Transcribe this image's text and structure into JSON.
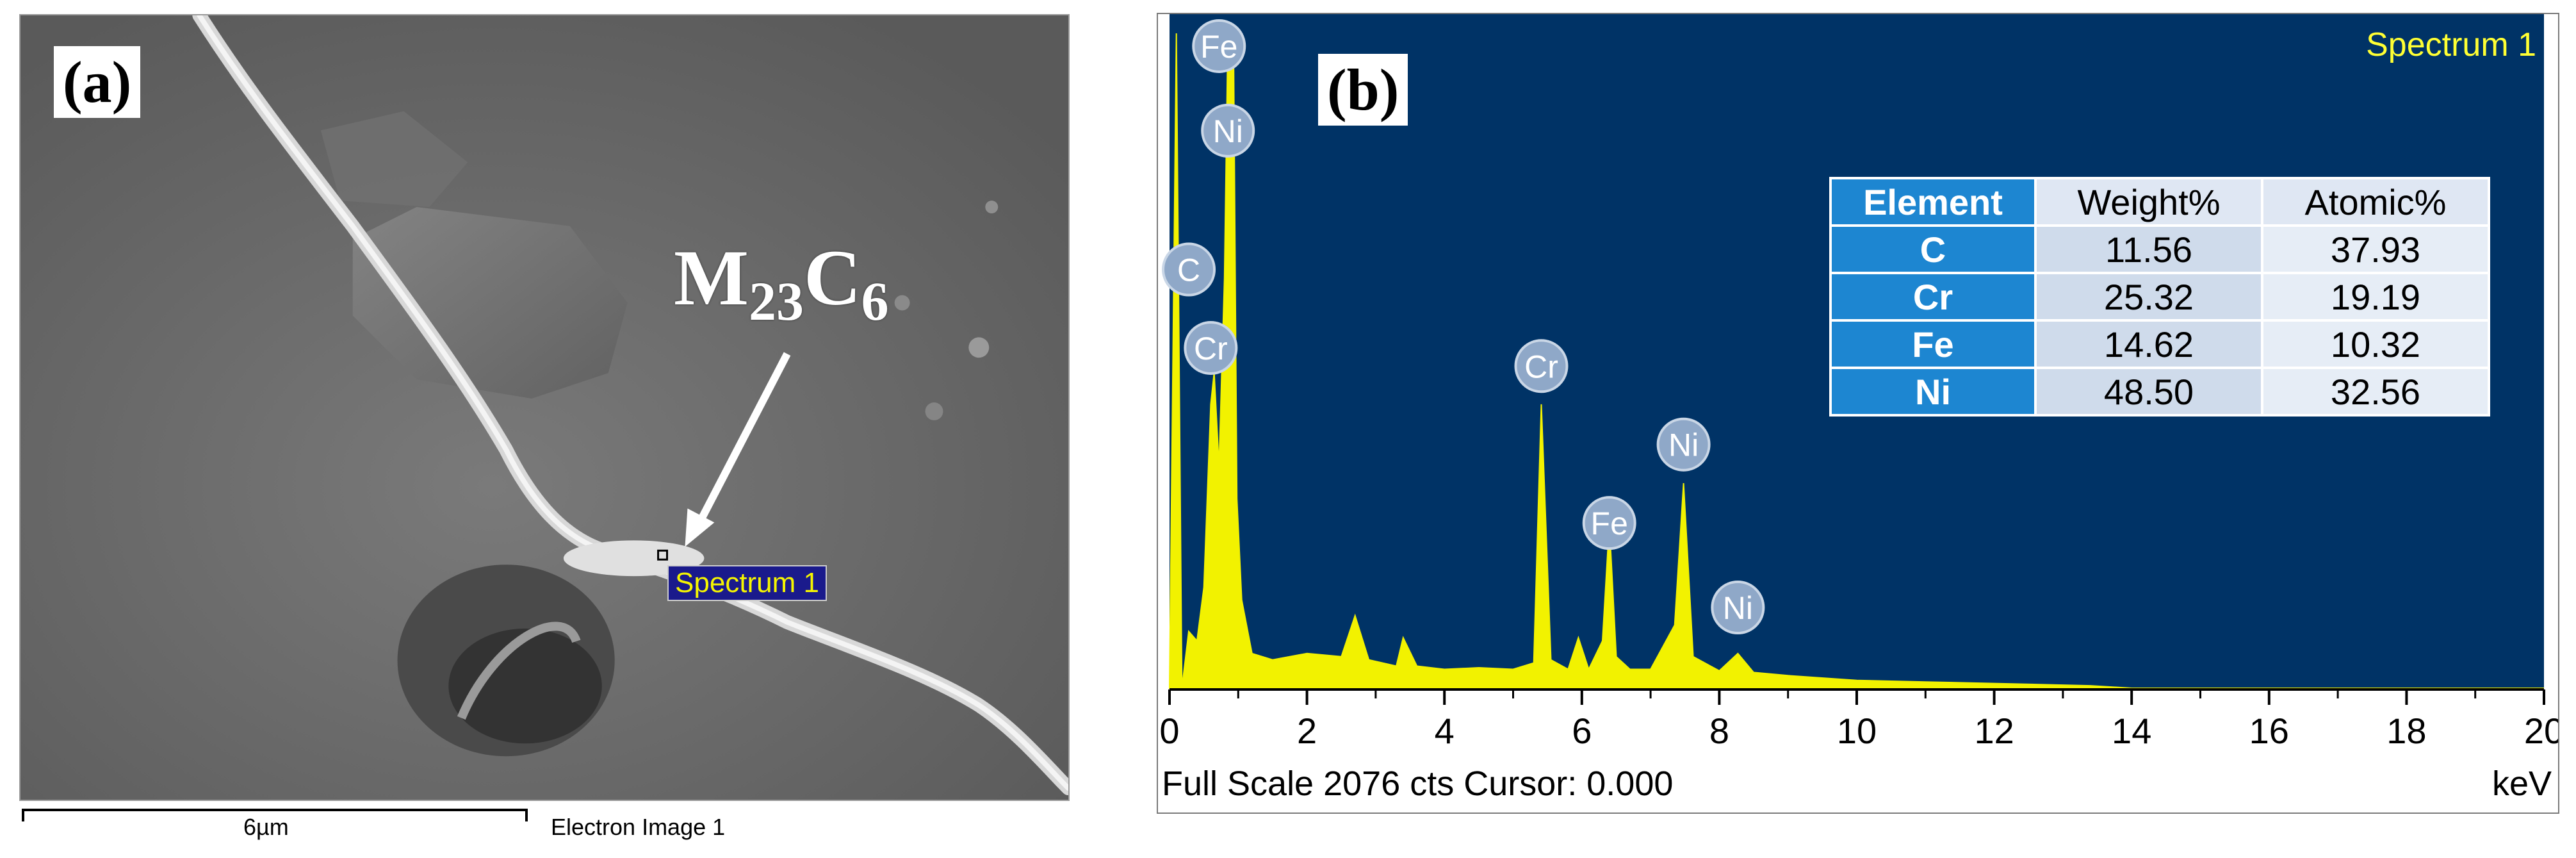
{
  "panel_a": {
    "label": "(a)",
    "annotation_main": "M",
    "annotation_sub1": "23",
    "annotation_c": "C",
    "annotation_sub2": "6",
    "spectrum_tag": "Spectrum 1",
    "scale_bar_label": "6µm",
    "image_label": "Electron Image 1"
  },
  "panel_b": {
    "label": "(b)",
    "spectrum_title": "Spectrum 1",
    "full_scale_text": "Full Scale 2076 cts Cursor: 0.000",
    "unit_label": "keV",
    "colors": {
      "plot_background": "#003366",
      "spectrum_fill": "#f2f200",
      "peak_label_bg": "#8fa8c8"
    }
  },
  "chart_data": {
    "type": "area",
    "title": "Spectrum 1",
    "xlabel": "keV",
    "ylabel": "",
    "xlim": [
      0,
      20
    ],
    "ylim": [
      0,
      2076
    ],
    "xticks": [
      0,
      2,
      4,
      6,
      8,
      10,
      12,
      14,
      16,
      18,
      20
    ],
    "x": [
      0.0,
      0.1,
      0.18,
      0.28,
      0.4,
      0.5,
      0.6,
      0.65,
      0.72,
      0.8,
      0.85,
      0.93,
      0.98,
      1.05,
      1.2,
      1.5,
      2.0,
      2.5,
      2.7,
      2.9,
      3.3,
      3.4,
      3.6,
      4.0,
      4.5,
      5.0,
      5.3,
      5.41,
      5.55,
      5.8,
      5.95,
      6.1,
      6.3,
      6.4,
      6.5,
      6.7,
      7.0,
      7.35,
      7.48,
      7.62,
      8.0,
      8.27,
      8.5,
      9.0,
      10.0,
      11.0,
      12.0,
      13.0,
      13.4,
      14.0,
      16.0,
      18.0,
      20.0
    ],
    "y": [
      0,
      2076,
      0,
      180,
      150,
      320,
      900,
      1000,
      700,
      1300,
      2076,
      2076,
      600,
      280,
      110,
      90,
      110,
      100,
      230,
      90,
      70,
      160,
      70,
      60,
      65,
      60,
      80,
      900,
      90,
      60,
      160,
      60,
      150,
      520,
      100,
      60,
      60,
      200,
      650,
      100,
      55,
      110,
      50,
      40,
      25,
      20,
      15,
      10,
      8,
      0,
      0,
      0,
      0
    ],
    "peak_labels": [
      {
        "element": "Fe",
        "x": 0.72
      },
      {
        "element": "Ni",
        "x": 0.85
      },
      {
        "element": "C",
        "x": 0.28
      },
      {
        "element": "Cr",
        "x": 0.6
      },
      {
        "element": "Cr",
        "x": 5.41
      },
      {
        "element": "Fe",
        "x": 6.4
      },
      {
        "element": "Ni",
        "x": 7.48
      },
      {
        "element": "Ni",
        "x": 8.27
      }
    ],
    "peak_label_levels": [
      1.0,
      0.86,
      0.63,
      0.5,
      0.47,
      0.21,
      0.34,
      0.07
    ],
    "table": {
      "headers": [
        "Element",
        "Weight%",
        "Atomic%"
      ],
      "rows": [
        [
          "C",
          "11.56",
          "37.93"
        ],
        [
          "Cr",
          "25.32",
          "19.19"
        ],
        [
          "Fe",
          "14.62",
          "10.32"
        ],
        [
          "Ni",
          "48.50",
          "32.56"
        ]
      ]
    }
  }
}
